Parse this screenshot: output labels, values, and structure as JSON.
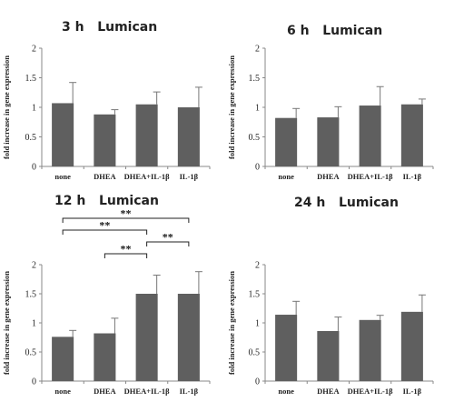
{
  "chart_data": [
    {
      "type": "bar",
      "title": "3 h   Lumican",
      "ylabel": "fold increase in gene expression",
      "categories": [
        "none",
        "DHEA",
        "DHEA+IL-1β",
        "IL-1β"
      ],
      "values": [
        1.07,
        0.88,
        1.05,
        1.0
      ],
      "errors": [
        0.35,
        0.08,
        0.21,
        0.34
      ],
      "ylim": [
        0,
        2
      ],
      "yticks": [
        "0",
        "0.5",
        "1",
        "1.5",
        "2"
      ],
      "significance": []
    },
    {
      "type": "bar",
      "title": "6 h   Lumican",
      "ylabel": "fold increase in gene expression",
      "categories": [
        "none",
        "DHEA",
        "DHEA+IL-1β",
        "IL-1β"
      ],
      "values": [
        0.82,
        0.83,
        1.03,
        1.05
      ],
      "errors": [
        0.16,
        0.18,
        0.32,
        0.09
      ],
      "ylim": [
        0,
        2
      ],
      "yticks": [
        "0",
        "0.5",
        "1",
        "1.5",
        "2"
      ],
      "significance": []
    },
    {
      "type": "bar",
      "title": "12 h   Lumican",
      "ylabel": "fold increase in gene expression",
      "categories": [
        "none",
        "DHEA",
        "DHEA+IL-1β",
        "IL-1β"
      ],
      "values": [
        0.76,
        0.82,
        1.5,
        1.5
      ],
      "errors": [
        0.11,
        0.26,
        0.32,
        0.38
      ],
      "ylim": [
        0,
        2
      ],
      "yticks": [
        "0",
        "0.5",
        "1",
        "1.5",
        "2"
      ],
      "significance": [
        {
          "from": 0,
          "to": 3,
          "label": "**"
        },
        {
          "from": 0,
          "to": 2,
          "label": "**"
        },
        {
          "from": 2,
          "to": 3,
          "label": "**"
        },
        {
          "from": 1,
          "to": 2,
          "label": "**"
        }
      ]
    },
    {
      "type": "bar",
      "title": "24 h   Lumican",
      "ylabel": "fold increase in gene expression",
      "categories": [
        "none",
        "DHEA",
        "DHEA+IL-1β",
        "IL-1β"
      ],
      "values": [
        1.14,
        0.86,
        1.05,
        1.19
      ],
      "errors": [
        0.23,
        0.24,
        0.08,
        0.29
      ],
      "ylim": [
        0,
        2
      ],
      "yticks": [
        "0",
        "0.5",
        "1",
        "1.5",
        "2"
      ],
      "significance": []
    }
  ],
  "colors": {
    "bar": "#5f5f5f",
    "axis": "#888888",
    "text": "#222222"
  }
}
